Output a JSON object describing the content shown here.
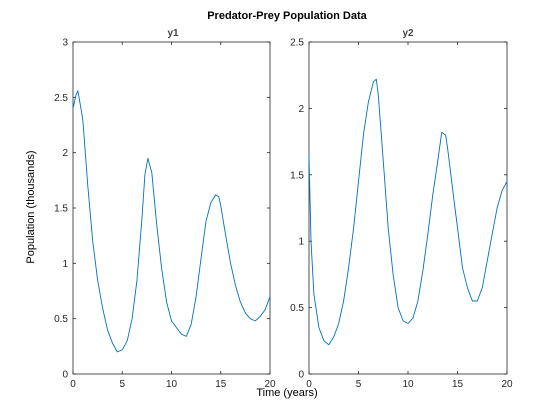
{
  "chart_data": {
    "title": "Predator-Prey Population Data",
    "xlabel": "Time (years)",
    "ylabel": "Population (thousands)",
    "colors": {
      "line": "#0072bd",
      "axes": "#262626"
    },
    "panels": [
      {
        "type": "line",
        "subtitle": "y1",
        "xlim": [
          0,
          20
        ],
        "ylim": [
          0,
          3
        ],
        "xticks": [
          0,
          5,
          10,
          15,
          20
        ],
        "xtick_labels": [
          "0",
          "5",
          "10",
          "15",
          "20"
        ],
        "yticks": [
          0,
          0.5,
          1,
          1.5,
          2,
          2.5,
          3
        ],
        "ytick_labels": [
          "0",
          "0.5",
          "1",
          "1.5",
          "2",
          "2.5",
          "3"
        ],
        "series": [
          {
            "x": [
              0,
              0.3,
              0.5,
              1,
              1.5,
              2,
              2.5,
              3,
              3.5,
              4,
              4.5,
              5,
              5.5,
              6,
              6.5,
              7,
              7.3,
              7.6,
              8,
              8.5,
              9,
              9.5,
              10,
              10.5,
              11,
              11.5,
              12,
              12.5,
              13,
              13.5,
              14,
              14.5,
              14.8,
              15,
              15.5,
              16,
              16.5,
              17,
              17.5,
              18,
              18.5,
              19,
              19.5,
              20
            ],
            "y": [
              2.4,
              2.52,
              2.56,
              2.3,
              1.7,
              1.2,
              0.85,
              0.6,
              0.4,
              0.28,
              0.2,
              0.22,
              0.3,
              0.5,
              0.85,
              1.4,
              1.8,
              1.95,
              1.82,
              1.35,
              0.95,
              0.65,
              0.48,
              0.42,
              0.36,
              0.34,
              0.45,
              0.7,
              1.05,
              1.38,
              1.55,
              1.62,
              1.6,
              1.52,
              1.25,
              1.0,
              0.8,
              0.65,
              0.55,
              0.5,
              0.48,
              0.52,
              0.58,
              0.7
            ]
          }
        ]
      },
      {
        "type": "line",
        "subtitle": "y2",
        "xlim": [
          0,
          20
        ],
        "ylim": [
          0,
          2.5
        ],
        "xticks": [
          0,
          5,
          10,
          15,
          20
        ],
        "xtick_labels": [
          "0",
          "5",
          "10",
          "15",
          "20"
        ],
        "yticks": [
          0,
          0.5,
          1,
          1.5,
          2,
          2.5
        ],
        "ytick_labels": [
          "0",
          "0.5",
          "1",
          "1.5",
          "2",
          "2.5"
        ],
        "series": [
          {
            "x": [
              0,
              0.2,
              0.5,
              1,
              1.5,
              2,
              2.5,
              3,
              3.5,
              4,
              4.5,
              5,
              5.5,
              6,
              6.5,
              6.8,
              7,
              7.5,
              8,
              8.5,
              9,
              9.5,
              10,
              10.5,
              11,
              11.5,
              12,
              12.5,
              13,
              13.4,
              13.8,
              14,
              14.5,
              15,
              15.5,
              16,
              16.5,
              17,
              17.5,
              18,
              18.5,
              19,
              19.5,
              20
            ],
            "y": [
              1.65,
              1.0,
              0.6,
              0.35,
              0.25,
              0.22,
              0.28,
              0.38,
              0.55,
              0.8,
              1.1,
              1.45,
              1.8,
              2.05,
              2.2,
              2.22,
              2.1,
              1.6,
              1.1,
              0.75,
              0.5,
              0.4,
              0.38,
              0.42,
              0.55,
              0.78,
              1.05,
              1.35,
              1.6,
              1.82,
              1.8,
              1.7,
              1.4,
              1.1,
              0.8,
              0.65,
              0.55,
              0.55,
              0.65,
              0.85,
              1.05,
              1.25,
              1.38,
              1.45
            ]
          }
        ]
      }
    ]
  }
}
